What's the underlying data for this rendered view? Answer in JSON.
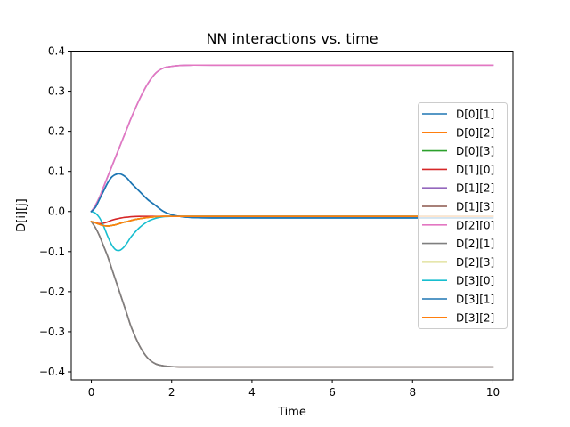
{
  "chart_data": {
    "type": "line",
    "title": "NN interactions vs. time",
    "xlabel": "Time",
    "ylabel": "D[i][j]",
    "xlim": [
      -0.5,
      10.5
    ],
    "ylim": [
      -0.42,
      0.4
    ],
    "xticks": [
      0,
      2,
      4,
      6,
      8,
      10
    ],
    "xtick_labels": [
      "0",
      "2",
      "4",
      "6",
      "8",
      "10"
    ],
    "yticks": [
      -0.4,
      -0.3,
      -0.2,
      -0.1,
      0.0,
      0.1,
      0.2,
      0.3,
      0.4
    ],
    "ytick_labels": [
      "−0.4",
      "−0.3",
      "−0.2",
      "−0.1",
      "0.0",
      "0.1",
      "0.2",
      "0.3",
      "0.4"
    ],
    "grid": false,
    "legend_position": "right",
    "x": [
      0,
      0.1,
      0.2,
      0.3,
      0.4,
      0.5,
      0.6,
      0.7,
      0.8,
      0.9,
      1.0,
      1.2,
      1.4,
      1.6,
      1.8,
      2.0,
      2.2,
      2.5,
      3.0,
      4.0,
      6.0,
      8.0,
      10.0
    ],
    "series": [
      {
        "name": "D[0][1]",
        "color": "#1f77b4",
        "values": [
          0.0,
          0.01,
          0.03,
          0.05,
          0.07,
          0.085,
          0.092,
          0.094,
          0.09,
          0.082,
          0.07,
          0.05,
          0.03,
          0.015,
          0.0,
          -0.008,
          -0.012,
          -0.015,
          -0.016,
          -0.016,
          -0.016,
          -0.016,
          -0.016
        ]
      },
      {
        "name": "D[0][2]",
        "color": "#ff7f0e",
        "values": [
          -0.025,
          -0.028,
          -0.032,
          -0.035,
          -0.036,
          -0.035,
          -0.033,
          -0.03,
          -0.027,
          -0.025,
          -0.022,
          -0.018,
          -0.015,
          -0.013,
          -0.012,
          -0.012,
          -0.012,
          -0.012,
          -0.012,
          -0.012,
          -0.012,
          -0.012,
          -0.012
        ]
      },
      {
        "name": "D[0][3]",
        "color": "#2ca02c",
        "values": [
          -0.025,
          -0.028,
          -0.032,
          -0.035,
          -0.036,
          -0.035,
          -0.033,
          -0.03,
          -0.027,
          -0.025,
          -0.022,
          -0.018,
          -0.015,
          -0.013,
          -0.012,
          -0.012,
          -0.012,
          -0.012,
          -0.012,
          -0.012,
          -0.012,
          -0.012,
          -0.012
        ]
      },
      {
        "name": "D[1][0]",
        "color": "#d62728",
        "values": [
          -0.025,
          -0.028,
          -0.03,
          -0.029,
          -0.026,
          -0.022,
          -0.019,
          -0.017,
          -0.015,
          -0.014,
          -0.013,
          -0.012,
          -0.012,
          -0.012,
          -0.012,
          -0.012,
          -0.012,
          -0.012,
          -0.012,
          -0.012,
          -0.012,
          -0.012,
          -0.012
        ]
      },
      {
        "name": "D[1][2]",
        "color": "#9467bd",
        "values": [
          0.0,
          0.015,
          0.035,
          0.06,
          0.085,
          0.11,
          0.135,
          0.16,
          0.185,
          0.21,
          0.235,
          0.28,
          0.318,
          0.345,
          0.358,
          0.362,
          0.364,
          0.365,
          0.365,
          0.365,
          0.365,
          0.365,
          0.365
        ]
      },
      {
        "name": "D[1][3]",
        "color": "#8c564b",
        "values": [
          -0.025,
          -0.04,
          -0.06,
          -0.085,
          -0.11,
          -0.14,
          -0.17,
          -0.2,
          -0.23,
          -0.26,
          -0.29,
          -0.335,
          -0.365,
          -0.38,
          -0.385,
          -0.387,
          -0.388,
          -0.388,
          -0.388,
          -0.388,
          -0.388,
          -0.388,
          -0.388
        ]
      },
      {
        "name": "D[2][0]",
        "color": "#e377c2",
        "values": [
          0.0,
          0.015,
          0.035,
          0.06,
          0.085,
          0.11,
          0.135,
          0.16,
          0.185,
          0.21,
          0.235,
          0.28,
          0.318,
          0.345,
          0.358,
          0.362,
          0.364,
          0.365,
          0.365,
          0.365,
          0.365,
          0.365,
          0.365
        ]
      },
      {
        "name": "D[2][1]",
        "color": "#7f7f7f",
        "values": [
          -0.025,
          -0.04,
          -0.06,
          -0.085,
          -0.11,
          -0.14,
          -0.17,
          -0.2,
          -0.23,
          -0.26,
          -0.29,
          -0.335,
          -0.365,
          -0.38,
          -0.385,
          -0.387,
          -0.388,
          -0.388,
          -0.388,
          -0.388,
          -0.388,
          -0.388,
          -0.388
        ]
      },
      {
        "name": "D[2][3]",
        "color": "#bcbd22",
        "values": [
          -0.025,
          -0.028,
          -0.032,
          -0.035,
          -0.036,
          -0.035,
          -0.033,
          -0.03,
          -0.027,
          -0.025,
          -0.022,
          -0.018,
          -0.015,
          -0.013,
          -0.012,
          -0.012,
          -0.012,
          -0.012,
          -0.012,
          -0.012,
          -0.012,
          -0.012,
          -0.012
        ]
      },
      {
        "name": "D[3][0]",
        "color": "#17becf",
        "values": [
          0.0,
          -0.004,
          -0.015,
          -0.035,
          -0.06,
          -0.082,
          -0.095,
          -0.097,
          -0.09,
          -0.077,
          -0.062,
          -0.04,
          -0.025,
          -0.017,
          -0.013,
          -0.012,
          -0.012,
          -0.012,
          -0.012,
          -0.012,
          -0.012,
          -0.012,
          -0.012
        ]
      },
      {
        "name": "D[3][1]",
        "color": "#1f77b4",
        "values": [
          0.0,
          0.01,
          0.03,
          0.05,
          0.07,
          0.085,
          0.092,
          0.094,
          0.09,
          0.082,
          0.07,
          0.05,
          0.03,
          0.015,
          0.0,
          -0.008,
          -0.012,
          -0.015,
          -0.016,
          -0.016,
          -0.016,
          -0.016,
          -0.016
        ]
      },
      {
        "name": "D[3][2]",
        "color": "#ff7f0e",
        "values": [
          -0.025,
          -0.028,
          -0.032,
          -0.035,
          -0.036,
          -0.035,
          -0.033,
          -0.03,
          -0.027,
          -0.025,
          -0.022,
          -0.018,
          -0.015,
          -0.013,
          -0.012,
          -0.012,
          -0.012,
          -0.012,
          -0.012,
          -0.012,
          -0.012,
          -0.012,
          -0.012
        ]
      }
    ]
  }
}
